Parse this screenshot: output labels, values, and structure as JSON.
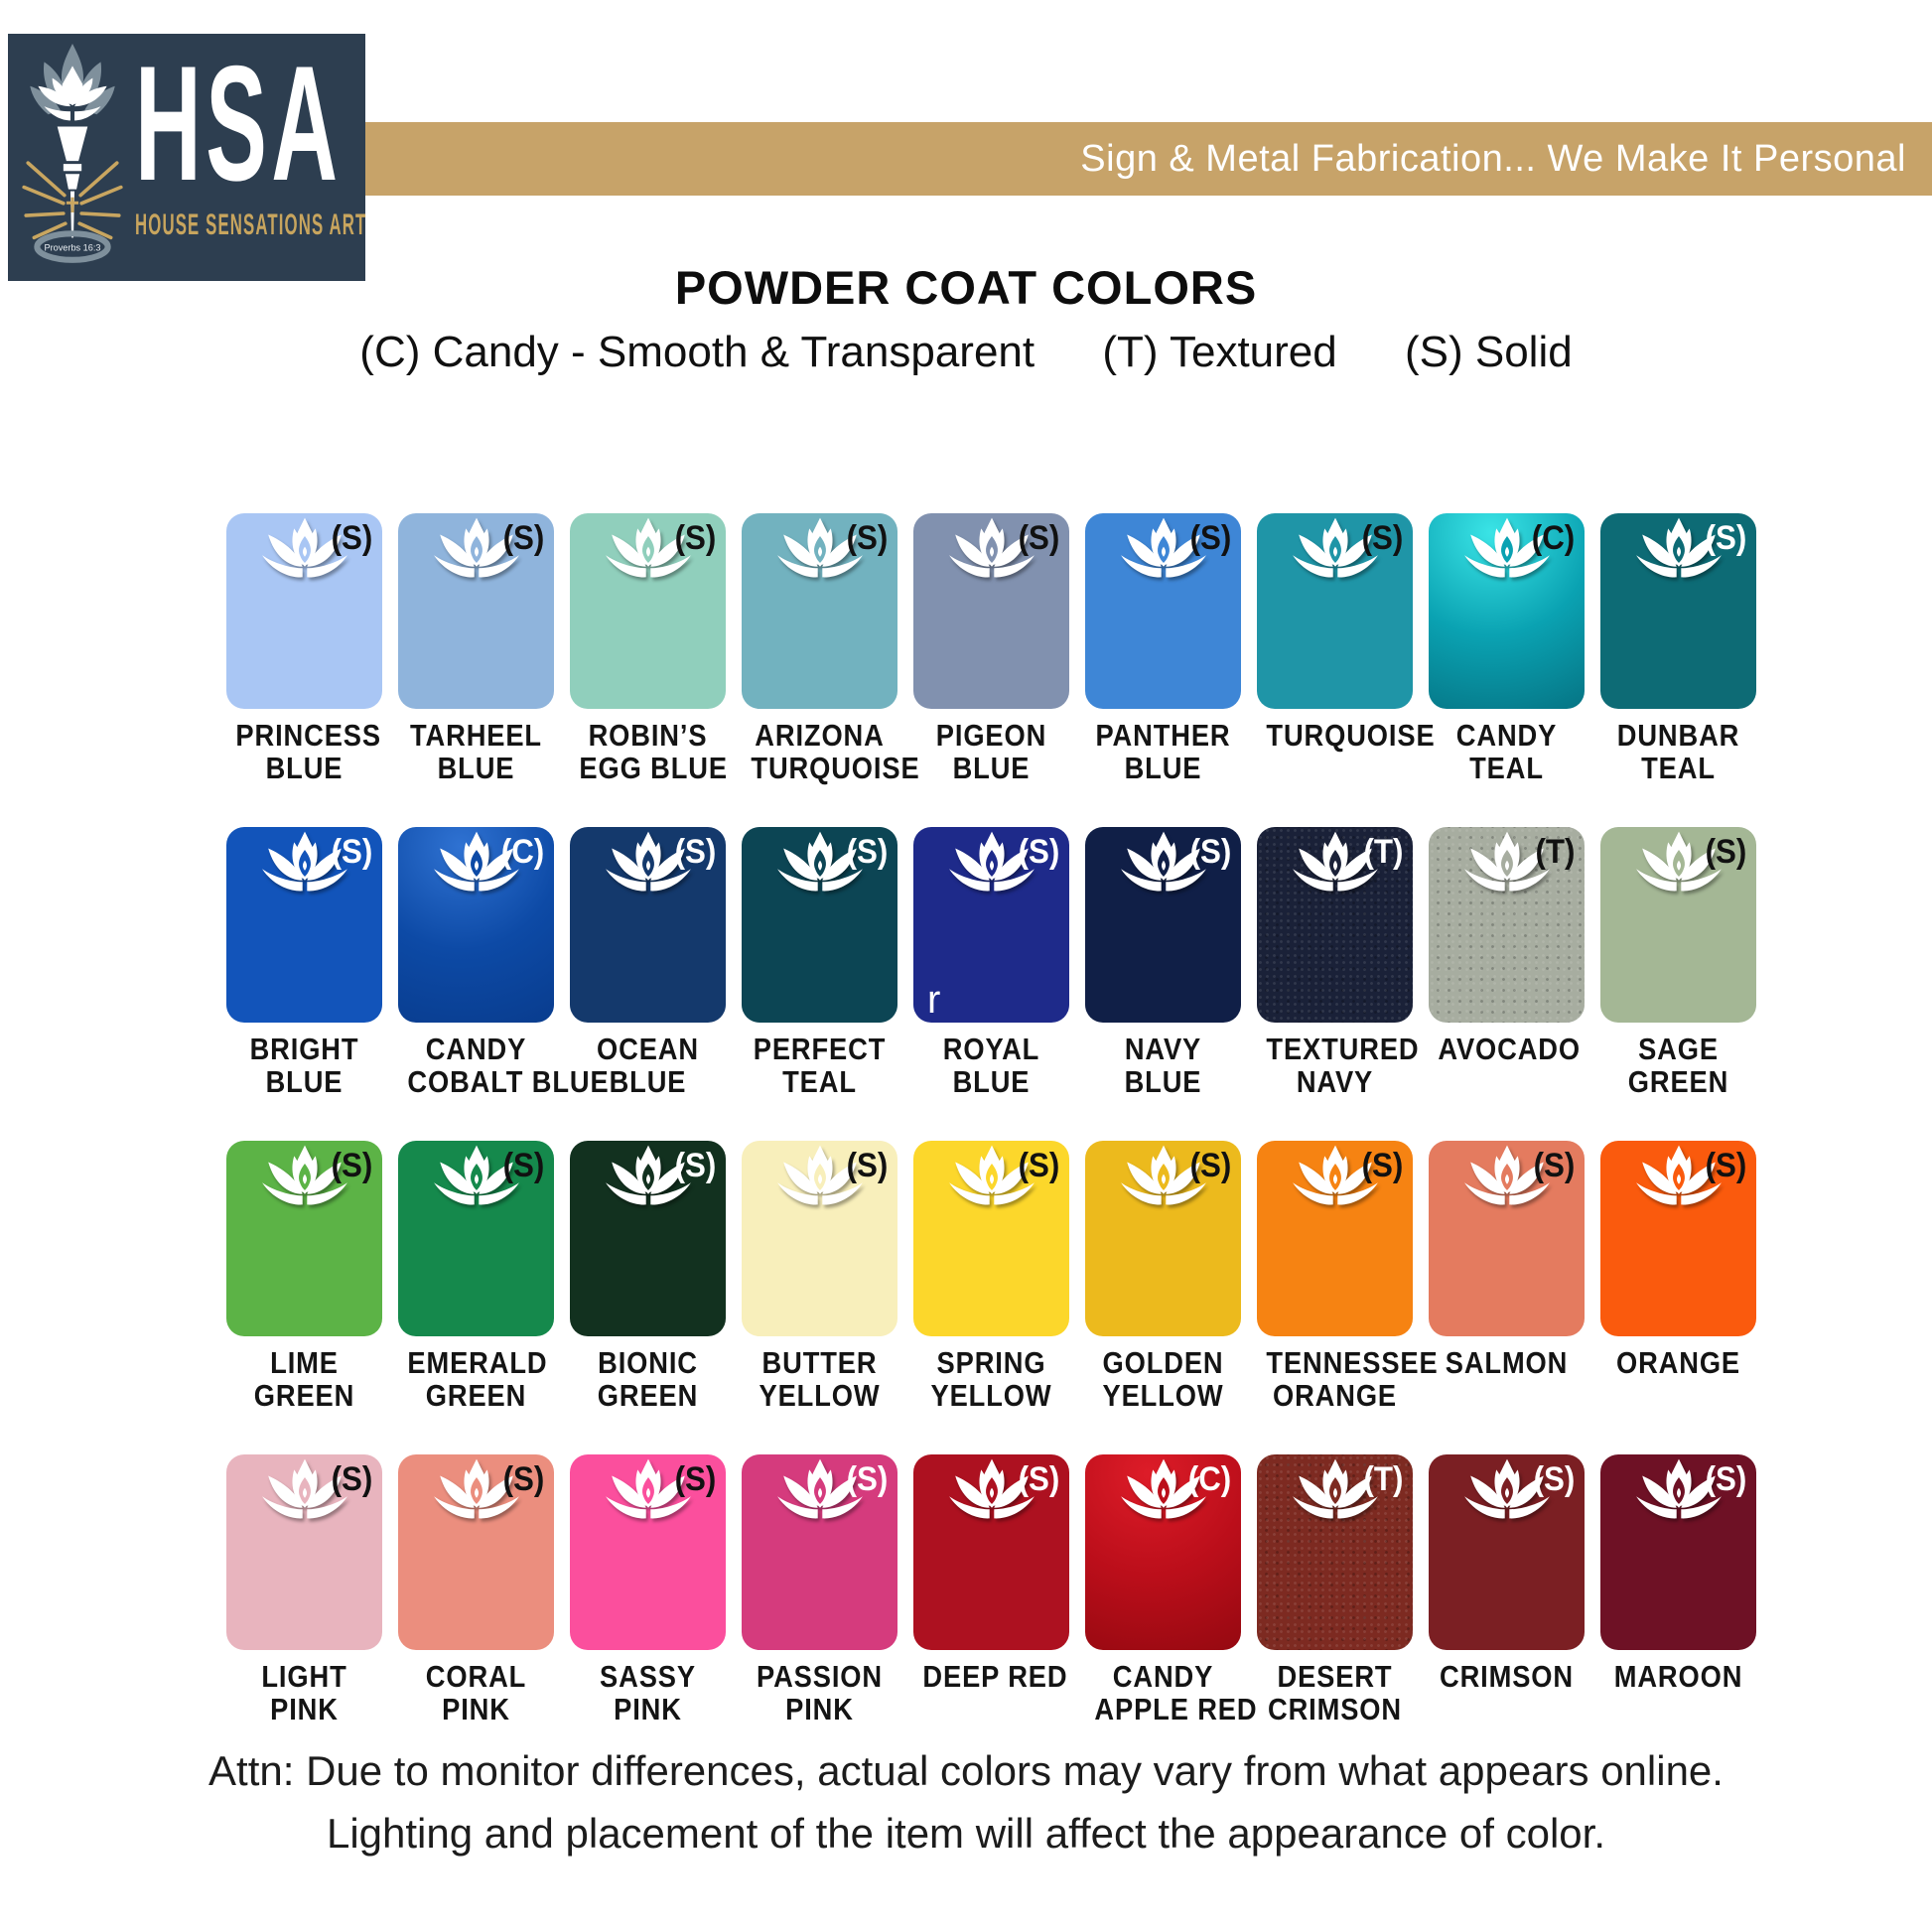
{
  "header": {
    "logo": {
      "acronym": "HSA",
      "name": "HOUSE SENSATIONS ART",
      "verse": "Proverbs 16:3",
      "bg_color": "#2d3e50",
      "gold_color": "#c8a55e"
    },
    "banner": {
      "tagline": "Sign & Metal Fabrication... We Make It Personal",
      "bg_color": "#c7a369"
    },
    "title": "POWDER COAT COLORS"
  },
  "legend": {
    "items": [
      "(C) Candy - Smooth & Transparent",
      "(T) Textured",
      "(S) Solid"
    ]
  },
  "stray_text": {
    "text": "r",
    "row": 1,
    "col": 4
  },
  "swatch_rows": [
    [
      {
        "name": "PRINCESS BLUE",
        "lines": [
          "PRINCESS",
          "BLUE"
        ],
        "type": "(S)",
        "code": "S",
        "color": "#a9c6f4",
        "type_color": "#111111"
      },
      {
        "name": "TARHEEL BLUE",
        "lines": [
          "TARHEEL",
          "BLUE"
        ],
        "type": "(S)",
        "code": "S",
        "color": "#8fb4dc",
        "type_color": "#111111"
      },
      {
        "name": "ROBIN’S EGG BLUE",
        "lines": [
          "ROBIN’S",
          "EGG BLUE"
        ],
        "type": "(S)",
        "code": "S",
        "color": "#90cfbc",
        "type_color": "#111111"
      },
      {
        "name": "ARIZONA TURQUOISE",
        "lines": [
          "ARIZONA",
          "TURQUOISE"
        ],
        "type": "(S)",
        "code": "S",
        "color": "#72b2bf",
        "type_color": "#111111"
      },
      {
        "name": "PIGEON BLUE",
        "lines": [
          "PIGEON",
          "BLUE"
        ],
        "type": "(S)",
        "code": "S",
        "color": "#8191af",
        "type_color": "#111111"
      },
      {
        "name": "PANTHER BLUE",
        "lines": [
          "PANTHER",
          "BLUE"
        ],
        "type": "(S)",
        "code": "S",
        "color": "#3e86d6",
        "type_color": "#111111"
      },
      {
        "name": "TURQUOISE",
        "lines": [
          "TURQUOISE"
        ],
        "type": "(S)",
        "code": "S",
        "color": "#1f95a7",
        "type_color": "#111111"
      },
      {
        "name": "CANDY TEAL",
        "lines": [
          "CANDY",
          "TEAL"
        ],
        "type": "(C)",
        "code": "C",
        "color": "#0aa2b2",
        "highlight": "#3ae4e6",
        "shade": "#056d7d",
        "type_color": "#111111"
      },
      {
        "name": "DUNBAR TEAL",
        "lines": [
          "DUNBAR",
          "TEAL"
        ],
        "type": "(S)",
        "code": "S",
        "color": "#0d6b75",
        "type_color": "#ffffff"
      }
    ],
    [
      {
        "name": "BRIGHT BLUE",
        "lines": [
          "BRIGHT",
          "BLUE"
        ],
        "type": "(S)",
        "code": "S",
        "color": "#1254ba",
        "type_color": "#ffffff"
      },
      {
        "name": "CANDY COBALT BLUE",
        "lines": [
          "CANDY",
          "COBALT BLUE"
        ],
        "type": "(C)",
        "code": "C",
        "color": "#0d4aa6",
        "highlight": "#2f72d2",
        "shade": "#083a8a",
        "type_color": "#ffffff"
      },
      {
        "name": "OCEAN BLUE",
        "lines": [
          "OCEAN",
          "BLUE"
        ],
        "type": "(S)",
        "code": "S",
        "color": "#14396c",
        "type_color": "#ffffff"
      },
      {
        "name": "PERFECT TEAL",
        "lines": [
          "PERFECT",
          "TEAL"
        ],
        "type": "(S)",
        "code": "S",
        "color": "#0c4554",
        "type_color": "#ffffff"
      },
      {
        "name": "ROYAL BLUE",
        "lines": [
          "ROYAL",
          "BLUE"
        ],
        "type": "(S)",
        "code": "S",
        "color": "#1e2a8a",
        "type_color": "#ffffff"
      },
      {
        "name": "NAVY BLUE",
        "lines": [
          "NAVY",
          "BLUE"
        ],
        "type": "(S)",
        "code": "S",
        "color": "#101f47",
        "type_color": "#ffffff"
      },
      {
        "name": "TEXTURED NAVY",
        "lines": [
          "TEXTURED",
          "NAVY"
        ],
        "type": "(T)",
        "code": "T",
        "color": "#1a2138",
        "type_color": "#ffffff"
      },
      {
        "name": "AVOCADO",
        "lines": [
          "AVOCADO"
        ],
        "type": "(T)",
        "code": "T",
        "color": "#a7ada0",
        "type_color": "#111111"
      },
      {
        "name": "SAGE GREEN",
        "lines": [
          "SAGE",
          "GREEN"
        ],
        "type": "(S)",
        "code": "S",
        "color": "#a4b795",
        "type_color": "#111111"
      }
    ],
    [
      {
        "name": "LIME GREEN",
        "lines": [
          "LIME",
          "GREEN"
        ],
        "type": "(S)",
        "code": "S",
        "color": "#5cb346",
        "type_color": "#111111"
      },
      {
        "name": "EMERALD GREEN",
        "lines": [
          "EMERALD",
          "GREEN"
        ],
        "type": "(S)",
        "code": "S",
        "color": "#15894c",
        "type_color": "#111111"
      },
      {
        "name": "BIONIC GREEN",
        "lines": [
          "BIONIC",
          "GREEN"
        ],
        "type": "(S)",
        "code": "S",
        "color": "#12311f",
        "type_color": "#ffffff"
      },
      {
        "name": "BUTTER YELLOW",
        "lines": [
          "BUTTER",
          "YELLOW"
        ],
        "type": "(S)",
        "code": "S",
        "color": "#f8efbb",
        "type_color": "#111111"
      },
      {
        "name": "SPRING YELLOW",
        "lines": [
          "SPRING",
          "YELLOW"
        ],
        "type": "(S)",
        "code": "S",
        "color": "#fcd72b",
        "type_color": "#111111"
      },
      {
        "name": "GOLDEN YELLOW",
        "lines": [
          "GOLDEN",
          "YELLOW"
        ],
        "type": "(S)",
        "code": "S",
        "color": "#ecba1d",
        "type_color": "#111111"
      },
      {
        "name": "TENNESSEE ORANGE",
        "lines": [
          "TENNESSEE",
          "ORANGE"
        ],
        "type": "(S)",
        "code": "S",
        "color": "#f68312",
        "type_color": "#111111"
      },
      {
        "name": "SALMON",
        "lines": [
          "SALMON"
        ],
        "type": "(S)",
        "code": "S",
        "color": "#e47b5f",
        "type_color": "#111111"
      },
      {
        "name": "ORANGE",
        "lines": [
          "ORANGE"
        ],
        "type": "(S)",
        "code": "S",
        "color": "#fa5a0d",
        "type_color": "#111111"
      }
    ],
    [
      {
        "name": "LIGHT PINK",
        "lines": [
          "LIGHT",
          "PINK"
        ],
        "type": "(S)",
        "code": "S",
        "color": "#e8b4be",
        "type_color": "#111111"
      },
      {
        "name": "CORAL PINK",
        "lines": [
          "CORAL",
          "PINK"
        ],
        "type": "(S)",
        "code": "S",
        "color": "#eb8e7e",
        "type_color": "#111111"
      },
      {
        "name": "SASSY PINK",
        "lines": [
          "SASSY",
          "PINK"
        ],
        "type": "(S)",
        "code": "S",
        "color": "#fb4f9d",
        "type_color": "#111111"
      },
      {
        "name": "PASSION PINK",
        "lines": [
          "PASSION",
          "PINK"
        ],
        "type": "(S)",
        "code": "S",
        "color": "#d53b7d",
        "type_color": "#ffffff"
      },
      {
        "name": "DEEP RED",
        "lines": [
          "DEEP RED"
        ],
        "type": "(S)",
        "code": "S",
        "color": "#ad1120",
        "type_color": "#ffffff"
      },
      {
        "name": "CANDY APPLE RED",
        "lines": [
          "CANDY",
          "APPLE RED"
        ],
        "type": "(C)",
        "code": "C",
        "color": "#bb0e1a",
        "highlight": "#dd1c28",
        "shade": "#8f080f",
        "type_color": "#ffffff"
      },
      {
        "name": "DESERT CRIMSON",
        "lines": [
          "DESERT",
          "CRIMSON"
        ],
        "type": "(T)",
        "code": "T",
        "color": "#7d2a21",
        "type_color": "#ffffff"
      },
      {
        "name": "CRIMSON",
        "lines": [
          "CRIMSON"
        ],
        "type": "(S)",
        "code": "S",
        "color": "#7b1f23",
        "type_color": "#ffffff"
      },
      {
        "name": "MAROON",
        "lines": [
          "MAROON"
        ],
        "type": "(S)",
        "code": "S",
        "color": "#6e1125",
        "type_color": "#ffffff"
      }
    ]
  ],
  "footer": {
    "line1": "Attn: Due to monitor differences, actual colors may vary from what appears online.",
    "line2": "Lighting and placement of the item will affect the appearance of color."
  }
}
